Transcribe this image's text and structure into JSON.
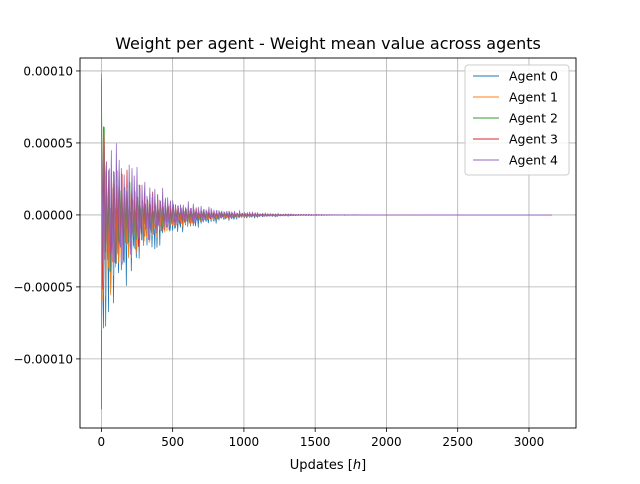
{
  "chart_data": {
    "type": "line",
    "title": "Weight per agent - Weight mean value across agents",
    "xlabel": "Updates [h]",
    "ylabel": "",
    "xlim": [
      -150,
      3330
    ],
    "ylim": [
      -0.000148,
      0.000109
    ],
    "grid": true,
    "legend_position": "top-right",
    "x_ticks": [
      0,
      500,
      1000,
      1500,
      2000,
      2500,
      3000
    ],
    "x_tick_labels": [
      "0",
      "500",
      "1000",
      "1500",
      "2000",
      "2500",
      "3000"
    ],
    "y_ticks": [
      0.0001,
      5e-05,
      0,
      -5e-05,
      -0.0001
    ],
    "y_tick_labels": [
      "0.00010",
      "0.00005",
      "0.00000",
      "−0.00005",
      "−0.00010"
    ],
    "x_range": [
      0,
      3160
    ],
    "sample_step": 5,
    "series": [
      {
        "name": "Agent 0",
        "color": "#1f77b4",
        "first_value": -0.000135,
        "amplitude": 6.2e-05,
        "upper_ratio": 0.15,
        "decay_tau": 290,
        "period": 18,
        "phase": 0.0,
        "bias": -0.3
      },
      {
        "name": "Agent 1",
        "color": "#ff7f0e",
        "first_value": -8e-05,
        "amplitude": 5.2e-05,
        "upper_ratio": 0.35,
        "decay_tau": 270,
        "period": 18,
        "phase": 0.6,
        "bias": -0.2
      },
      {
        "name": "Agent 2",
        "color": "#2ca02c",
        "first_value": 9e-05,
        "amplitude": 4.8e-05,
        "upper_ratio": 0.85,
        "decay_tau": 260,
        "period": 18,
        "phase": 1.2,
        "bias": 0.05
      },
      {
        "name": "Agent 3",
        "color": "#d62728",
        "first_value": 9.5e-05,
        "amplitude": 5.5e-05,
        "upper_ratio": 0.9,
        "decay_tau": 265,
        "period": 18,
        "phase": 1.8,
        "bias": 0.08
      },
      {
        "name": "Agent 4",
        "color": "#9467bd",
        "first_value": 9.8e-05,
        "amplitude": 5.8e-05,
        "upper_ratio": 1.0,
        "decay_tau": 300,
        "period": 18,
        "phase": 2.4,
        "bias": 0.15
      }
    ]
  }
}
